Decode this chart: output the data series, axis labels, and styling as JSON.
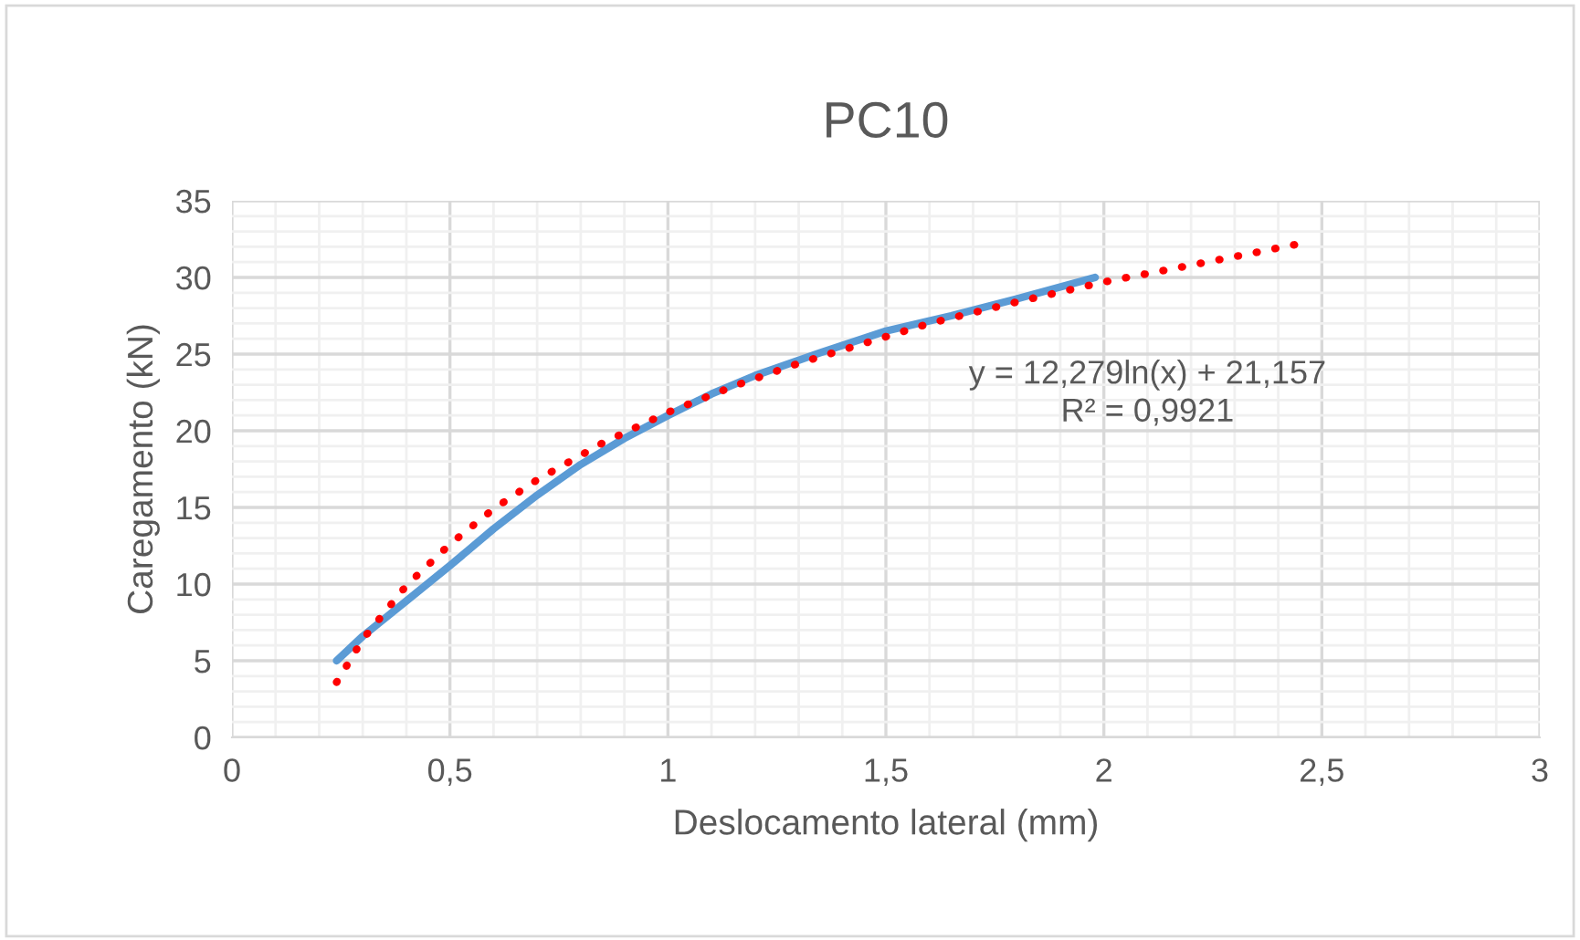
{
  "chart_data": {
    "type": "line",
    "title": "PC10",
    "xlabel": "Deslocamento lateral (mm)",
    "ylabel": "Caregamento (kN)",
    "xlim": [
      0,
      3
    ],
    "ylim": [
      0,
      35
    ],
    "xticks": [
      0,
      {
        "value": 0.5,
        "label": "0,5"
      },
      1,
      {
        "value": 1.5,
        "label": "1,5"
      },
      2,
      {
        "value": 2.5,
        "label": "2,5"
      },
      3
    ],
    "yticks": [
      0,
      5,
      10,
      15,
      20,
      25,
      30,
      35
    ],
    "grid": true,
    "legend": false,
    "series": [
      {
        "color": "#5b9bd5",
        "line_style": "solid",
        "x": [
          0.24,
          0.3,
          0.4,
          0.5,
          0.6,
          0.7,
          0.8,
          0.9,
          1.0,
          1.1,
          1.2,
          1.35,
          1.5,
          1.65,
          1.8,
          1.98
        ],
        "values": [
          5,
          6.6,
          8.9,
          11.2,
          13.6,
          15.8,
          17.8,
          19.5,
          21,
          22.4,
          23.6,
          25.1,
          26.5,
          27.5,
          28.6,
          30
        ]
      },
      {
        "color": "#ff0000",
        "line_style": "dotted",
        "x": [
          0.24,
          0.3,
          0.4,
          0.5,
          0.6,
          0.7,
          0.85,
          1.0,
          1.15,
          1.3,
          1.45,
          1.6,
          1.8,
          2.0,
          2.2,
          2.45
        ],
        "values": [
          3.6,
          6.4,
          9.9,
          12.6,
          14.9,
          16.8,
          19.2,
          21.2,
          22.9,
          24.4,
          25.7,
          27.0,
          28.4,
          29.7,
          30.8,
          32.2
        ]
      }
    ],
    "annotations": [
      "y = 12,279ln(x) + 21,157\nR² = 0,9921"
    ]
  }
}
